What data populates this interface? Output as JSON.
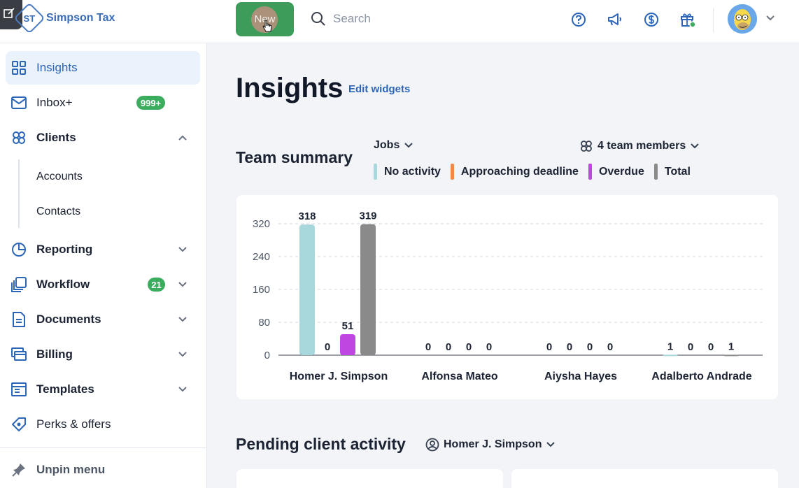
{
  "topbar": {
    "logo_initials": "ST",
    "logo_text": "Simpson Tax",
    "new_label": "New",
    "search_placeholder": "Search",
    "icons": [
      "edit-icon",
      "help-icon",
      "megaphone-icon",
      "dollar-icon",
      "gift-icon",
      "chevron-down-icon"
    ]
  },
  "sidebar": {
    "items": [
      {
        "label": "Insights",
        "icon": "grid-icon"
      },
      {
        "label": "Inbox+",
        "badge": "999+",
        "icon": "mail-icon"
      },
      {
        "label": "Clients",
        "icon": "clients-icon"
      },
      {
        "label": "Reporting",
        "icon": "pie-icon"
      },
      {
        "label": "Workflow",
        "badge": "21",
        "icon": "workflow-icon"
      },
      {
        "label": "Documents",
        "icon": "document-icon"
      },
      {
        "label": "Billing",
        "icon": "billing-icon"
      },
      {
        "label": "Templates",
        "icon": "templates-icon"
      },
      {
        "label": "Perks & offers",
        "icon": "perks-icon"
      }
    ],
    "sub_items": [
      "Accounts",
      "Contacts"
    ],
    "unpin": "Unpin menu"
  },
  "main": {
    "title": "Insights",
    "edit_widgets": "Edit widgets",
    "team_summary": {
      "title": "Team summary",
      "jobs_dropdown": "Jobs",
      "team_dropdown": "4 team members",
      "legend": [
        {
          "label": "No activity",
          "color": "#a9d8dc"
        },
        {
          "label": "Approaching deadline",
          "color": "#f0894a"
        },
        {
          "label": "Overdue",
          "color": "#c046e2"
        },
        {
          "label": "Total",
          "color": "#8a8a8a"
        }
      ]
    },
    "pending": {
      "title": "Pending client activity",
      "user_dropdown": "Homer J. Simpson"
    }
  },
  "chart_data": {
    "type": "bar",
    "categories": [
      "Homer J. Simpson",
      "Alfonsa Mateo",
      "Aiysha Hayes",
      "Adalberto Andrade"
    ],
    "series": [
      {
        "name": "No activity",
        "color": "#a9d8dc",
        "values": [
          318,
          0,
          0,
          1
        ]
      },
      {
        "name": "Approaching deadline",
        "color": "#f0894a",
        "values": [
          0,
          0,
          0,
          0
        ]
      },
      {
        "name": "Overdue",
        "color": "#c046e2",
        "values": [
          51,
          0,
          0,
          0
        ]
      },
      {
        "name": "Total",
        "color": "#8a8a8a",
        "values": [
          319,
          0,
          0,
          1
        ]
      }
    ],
    "yticks": [
      0,
      80,
      160,
      240,
      320
    ],
    "ylim": [
      0,
      320
    ],
    "grid": true,
    "title": "",
    "xlabel": "",
    "ylabel": ""
  }
}
